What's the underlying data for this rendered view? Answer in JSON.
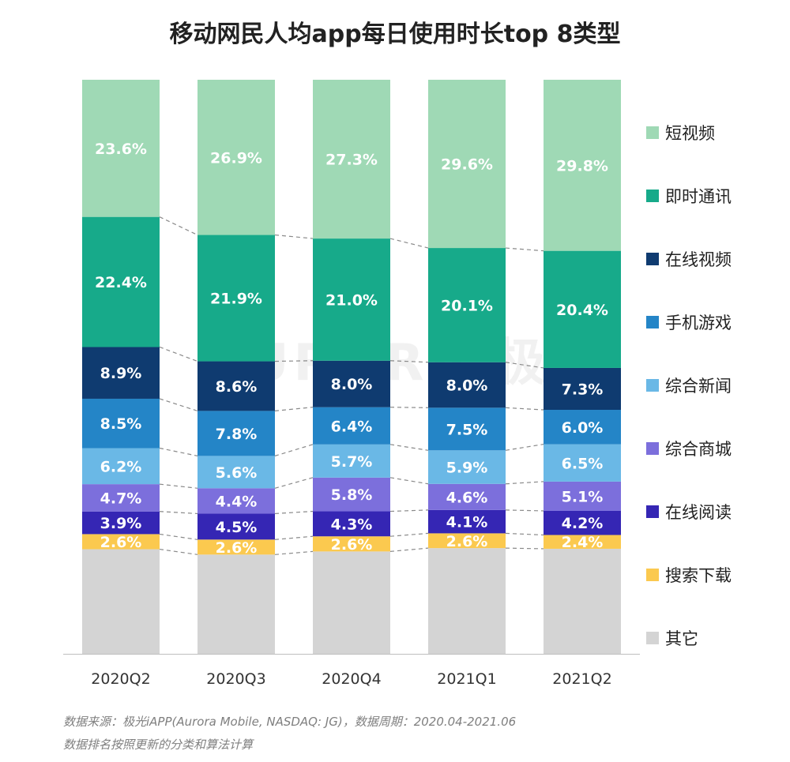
{
  "chart_data": {
    "type": "bar",
    "stacked": true,
    "normalized": true,
    "title": "移动网民人均app每日使用时长top 8类型",
    "categories": [
      "2020Q2",
      "2020Q3",
      "2020Q4",
      "2021Q1",
      "2021Q2"
    ],
    "series": [
      {
        "name": "其它",
        "color": "#d4d4d4",
        "values": [
          18.0,
          17.2,
          17.6,
          18.6,
          18.3
        ],
        "labels": [
          null,
          null,
          null,
          null,
          null
        ],
        "label_color": "#ffffff"
      },
      {
        "name": "搜索下载",
        "color": "#fbc94f",
        "values": [
          2.6,
          2.6,
          2.6,
          2.6,
          2.4
        ],
        "labels": [
          "2.6%",
          "2.6%",
          "2.6%",
          "2.6%",
          "2.4%"
        ],
        "label_color": "#ffffff"
      },
      {
        "name": "在线阅读",
        "color": "#3526b4",
        "values": [
          3.9,
          4.5,
          4.3,
          4.1,
          4.2
        ],
        "labels": [
          "3.9%",
          "4.5%",
          "4.3%",
          "4.1%",
          "4.2%"
        ],
        "label_color": "#ffffff"
      },
      {
        "name": "综合商城",
        "color": "#7c6fdc",
        "values": [
          4.7,
          4.4,
          5.8,
          4.6,
          5.1
        ],
        "labels": [
          "4.7%",
          "4.4%",
          "5.8%",
          "4.6%",
          "5.1%"
        ],
        "label_color": "#ffffff"
      },
      {
        "name": "综合新闻",
        "color": "#6ab8e6",
        "values": [
          6.2,
          5.6,
          5.7,
          5.9,
          6.5
        ],
        "labels": [
          "6.2%",
          "5.6%",
          "5.7%",
          "5.9%",
          "6.5%"
        ],
        "label_color": "#ffffff"
      },
      {
        "name": "手机游戏",
        "color": "#2485c7",
        "values": [
          8.5,
          7.8,
          6.4,
          7.5,
          6.0
        ],
        "labels": [
          "8.5%",
          "7.8%",
          "6.4%",
          "7.5%",
          "6.0%"
        ],
        "label_color": "#ffffff"
      },
      {
        "name": "在线视频",
        "color": "#0f3b70",
        "values": [
          8.9,
          8.6,
          8.0,
          8.0,
          7.3
        ],
        "labels": [
          "8.9%",
          "8.6%",
          "8.0%",
          "8.0%",
          "7.3%"
        ],
        "label_color": "#ffffff"
      },
      {
        "name": "即时通讯",
        "color": "#17aa8a",
        "values": [
          22.4,
          21.9,
          21.0,
          20.1,
          20.4
        ],
        "labels": [
          "22.4%",
          "21.9%",
          "21.0%",
          "20.1%",
          "20.4%"
        ],
        "label_color": "#ffffff"
      },
      {
        "name": "短视频",
        "color": "#9fd9b5",
        "values": [
          23.6,
          26.9,
          27.3,
          29.6,
          29.8
        ],
        "labels": [
          "23.6%",
          "26.9%",
          "27.3%",
          "29.6%",
          "29.8%"
        ],
        "label_color": "#ffffff"
      }
    ],
    "legend_order": [
      "短视频",
      "即时通讯",
      "在线视频",
      "手机游戏",
      "综合新闻",
      "综合商城",
      "在线阅读",
      "搜索下载",
      "其它"
    ],
    "legend_position": "right",
    "connector_lines": "dashed",
    "ylim": [
      0,
      100
    ],
    "grid": false
  },
  "source_line_1": "数据来源：极光iAPP(Aurora Mobile, NASDAQ: JG)，数据周期：2020.04-2021.06",
  "source_line_2": "数据排名按照更新的分类和算法计算",
  "watermark": {
    "text": "AURORA 极光",
    "logo": "aurora-logo"
  }
}
